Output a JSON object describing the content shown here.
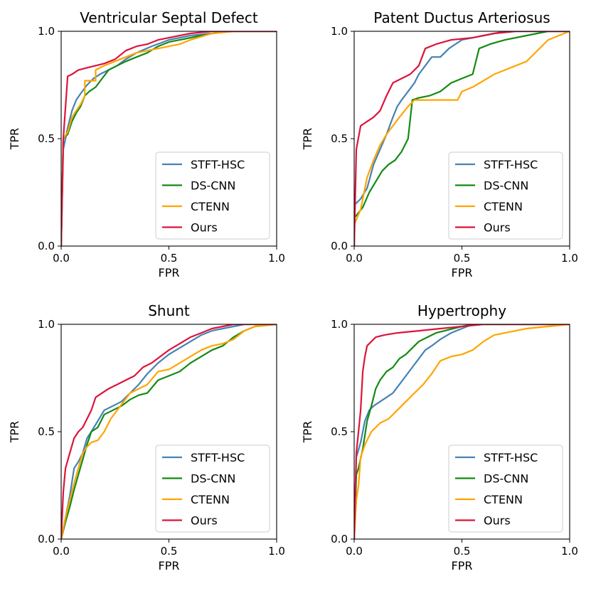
{
  "chart_data": [
    {
      "type": "line",
      "title": "Ventricular Septal Defect",
      "xlabel": "FPR",
      "ylabel": "TPR",
      "xlim": [
        0,
        1
      ],
      "ylim": [
        0,
        1
      ],
      "xticks": [
        "0.0",
        "0.5",
        "1.0"
      ],
      "yticks": [
        "0.0",
        "0.5",
        "1.0"
      ],
      "legend_position": "lower-right",
      "series": [
        {
          "name": "STFT-HSC",
          "color": "#4682b4",
          "x": [
            0,
            0.01,
            0.03,
            0.05,
            0.07,
            0.09,
            0.12,
            0.15,
            0.18,
            0.22,
            0.26,
            0.3,
            0.35,
            0.42,
            0.5,
            0.6,
            0.7,
            0.8,
            1.0
          ],
          "y": [
            0,
            0.45,
            0.55,
            0.63,
            0.68,
            0.71,
            0.75,
            0.78,
            0.8,
            0.82,
            0.84,
            0.87,
            0.9,
            0.93,
            0.96,
            0.98,
            0.99,
            1.0,
            1.0
          ]
        },
        {
          "name": "DS-CNN",
          "color": "#138a13",
          "x": [
            0,
            0.01,
            0.03,
            0.05,
            0.07,
            0.09,
            0.11,
            0.13,
            0.16,
            0.19,
            0.22,
            0.26,
            0.3,
            0.35,
            0.4,
            0.45,
            0.5,
            0.55,
            0.65,
            0.75,
            1.0
          ],
          "y": [
            0,
            0.5,
            0.52,
            0.58,
            0.62,
            0.65,
            0.7,
            0.72,
            0.74,
            0.78,
            0.82,
            0.84,
            0.86,
            0.88,
            0.9,
            0.93,
            0.95,
            0.96,
            0.98,
            1.0,
            1.0
          ]
        },
        {
          "name": "CTENN",
          "color": "#ffa500",
          "x": [
            0,
            0.01,
            0.03,
            0.05,
            0.07,
            0.09,
            0.11,
            0.11,
            0.16,
            0.16,
            0.2,
            0.25,
            0.3,
            0.35,
            0.4,
            0.45,
            0.5,
            0.55,
            0.6,
            0.7,
            0.8,
            1.0
          ],
          "y": [
            0,
            0.5,
            0.53,
            0.6,
            0.63,
            0.66,
            0.7,
            0.77,
            0.77,
            0.82,
            0.84,
            0.86,
            0.88,
            0.9,
            0.91,
            0.92,
            0.93,
            0.94,
            0.96,
            0.99,
            1.0,
            1.0
          ]
        },
        {
          "name": "Ours",
          "color": "#dc143c",
          "x": [
            0,
            0.01,
            0.03,
            0.05,
            0.08,
            0.12,
            0.16,
            0.2,
            0.25,
            0.3,
            0.35,
            0.4,
            0.45,
            0.5,
            0.55,
            0.6,
            0.7,
            0.8,
            1.0
          ],
          "y": [
            0,
            0.5,
            0.79,
            0.8,
            0.82,
            0.83,
            0.84,
            0.85,
            0.87,
            0.91,
            0.93,
            0.94,
            0.96,
            0.97,
            0.98,
            0.99,
            1.0,
            1.0,
            1.0
          ]
        }
      ]
    },
    {
      "type": "line",
      "title": "Patent Ductus Arteriosus",
      "xlabel": "FPR",
      "ylabel": "TPR",
      "xlim": [
        0,
        1
      ],
      "ylim": [
        0,
        1
      ],
      "xticks": [
        "0.0",
        "0.5",
        "1.0"
      ],
      "yticks": [
        "0.0",
        "0.5",
        "1.0"
      ],
      "legend_position": "lower-right",
      "series": [
        {
          "name": "STFT-HSC",
          "color": "#4682b4",
          "x": [
            0,
            0,
            0.03,
            0.06,
            0.09,
            0.12,
            0.15,
            0.18,
            0.2,
            0.22,
            0.25,
            0.28,
            0.3,
            0.33,
            0.36,
            0.4,
            0.44,
            0.5,
            0.55,
            0.6,
            0.7,
            0.85,
            1.0
          ],
          "y": [
            0,
            0.19,
            0.22,
            0.27,
            0.38,
            0.45,
            0.52,
            0.6,
            0.65,
            0.68,
            0.72,
            0.76,
            0.8,
            0.84,
            0.88,
            0.88,
            0.92,
            0.96,
            0.97,
            0.98,
            1.0,
            1.0,
            1.0
          ]
        },
        {
          "name": "DS-CNN",
          "color": "#138a13",
          "x": [
            0,
            0,
            0.04,
            0.07,
            0.1,
            0.13,
            0.16,
            0.19,
            0.22,
            0.25,
            0.27,
            0.3,
            0.35,
            0.4,
            0.45,
            0.5,
            0.55,
            0.58,
            0.63,
            0.7,
            0.8,
            0.9,
            1.0
          ],
          "y": [
            0,
            0.13,
            0.18,
            0.25,
            0.3,
            0.35,
            0.38,
            0.4,
            0.44,
            0.5,
            0.68,
            0.69,
            0.7,
            0.72,
            0.76,
            0.78,
            0.8,
            0.92,
            0.94,
            0.96,
            0.98,
            1.0,
            1.0
          ]
        },
        {
          "name": "CTENN",
          "color": "#ffa500",
          "x": [
            0,
            0,
            0.03,
            0.06,
            0.09,
            0.12,
            0.15,
            0.18,
            0.21,
            0.25,
            0.28,
            0.35,
            0.4,
            0.48,
            0.5,
            0.55,
            0.6,
            0.65,
            0.7,
            0.8,
            0.9,
            1.0
          ],
          "y": [
            0,
            0.1,
            0.17,
            0.32,
            0.4,
            0.47,
            0.52,
            0.56,
            0.6,
            0.65,
            0.68,
            0.68,
            0.68,
            0.68,
            0.72,
            0.74,
            0.77,
            0.8,
            0.82,
            0.86,
            0.96,
            1.0
          ]
        },
        {
          "name": "Ours",
          "color": "#dc143c",
          "x": [
            0,
            0.01,
            0.03,
            0.06,
            0.09,
            0.12,
            0.15,
            0.18,
            0.22,
            0.26,
            0.3,
            0.33,
            0.38,
            0.45,
            0.55,
            0.65,
            0.75,
            1.0
          ],
          "y": [
            0,
            0.45,
            0.56,
            0.58,
            0.6,
            0.63,
            0.7,
            0.76,
            0.78,
            0.8,
            0.84,
            0.92,
            0.94,
            0.96,
            0.97,
            0.99,
            1.0,
            1.0
          ]
        }
      ]
    },
    {
      "type": "line",
      "title": "Shunt",
      "xlabel": "FPR",
      "ylabel": "TPR",
      "xlim": [
        0,
        1
      ],
      "ylim": [
        0,
        1
      ],
      "xticks": [
        "0.0",
        "0.5",
        "1.0"
      ],
      "yticks": [
        "0.0",
        "0.5",
        "1.0"
      ],
      "legend_position": "lower-right",
      "series": [
        {
          "name": "STFT-HSC",
          "color": "#4682b4",
          "x": [
            0,
            0.02,
            0.04,
            0.06,
            0.08,
            0.1,
            0.12,
            0.14,
            0.17,
            0.2,
            0.24,
            0.28,
            0.32,
            0.36,
            0.4,
            0.45,
            0.5,
            0.55,
            0.6,
            0.65,
            0.7,
            0.75,
            0.8,
            0.85,
            1.0
          ],
          "y": [
            0,
            0.1,
            0.2,
            0.33,
            0.36,
            0.4,
            0.47,
            0.5,
            0.55,
            0.6,
            0.62,
            0.64,
            0.68,
            0.72,
            0.77,
            0.82,
            0.86,
            0.89,
            0.92,
            0.95,
            0.97,
            0.98,
            0.99,
            1.0,
            1.0
          ]
        },
        {
          "name": "DS-CNN",
          "color": "#138a13",
          "x": [
            0,
            0.02,
            0.04,
            0.06,
            0.08,
            0.1,
            0.12,
            0.14,
            0.17,
            0.2,
            0.24,
            0.28,
            0.32,
            0.36,
            0.4,
            0.45,
            0.5,
            0.55,
            0.6,
            0.65,
            0.7,
            0.75,
            0.8,
            0.85,
            0.9,
            1.0
          ],
          "y": [
            0,
            0.08,
            0.15,
            0.23,
            0.3,
            0.37,
            0.44,
            0.5,
            0.52,
            0.58,
            0.6,
            0.62,
            0.65,
            0.67,
            0.68,
            0.74,
            0.76,
            0.78,
            0.82,
            0.85,
            0.88,
            0.9,
            0.94,
            0.97,
            0.99,
            1.0
          ]
        },
        {
          "name": "CTENN",
          "color": "#ffa500",
          "x": [
            0,
            0.02,
            0.04,
            0.06,
            0.08,
            0.1,
            0.12,
            0.14,
            0.17,
            0.2,
            0.23,
            0.26,
            0.29,
            0.32,
            0.36,
            0.4,
            0.45,
            0.5,
            0.55,
            0.6,
            0.65,
            0.7,
            0.75,
            0.8,
            0.85,
            0.9,
            1.0
          ],
          "y": [
            0,
            0.1,
            0.18,
            0.26,
            0.33,
            0.4,
            0.43,
            0.45,
            0.46,
            0.5,
            0.56,
            0.6,
            0.64,
            0.68,
            0.7,
            0.72,
            0.78,
            0.79,
            0.82,
            0.85,
            0.88,
            0.9,
            0.91,
            0.93,
            0.97,
            0.99,
            1.0
          ]
        },
        {
          "name": "Ours",
          "color": "#dc143c",
          "x": [
            0,
            0.01,
            0.02,
            0.04,
            0.06,
            0.08,
            0.1,
            0.12,
            0.14,
            0.16,
            0.19,
            0.22,
            0.26,
            0.3,
            0.34,
            0.38,
            0.42,
            0.46,
            0.5,
            0.55,
            0.6,
            0.65,
            0.7,
            0.75,
            0.8,
            0.85,
            1.0
          ],
          "y": [
            0,
            0.22,
            0.33,
            0.4,
            0.47,
            0.5,
            0.52,
            0.56,
            0.6,
            0.66,
            0.68,
            0.7,
            0.72,
            0.74,
            0.76,
            0.8,
            0.82,
            0.85,
            0.88,
            0.91,
            0.94,
            0.96,
            0.98,
            0.99,
            1.0,
            1.0,
            1.0
          ]
        }
      ]
    },
    {
      "type": "line",
      "title": "Hypertrophy",
      "xlabel": "FPR",
      "ylabel": "TPR",
      "xlim": [
        0,
        1
      ],
      "ylim": [
        0,
        1
      ],
      "xticks": [
        "0.0",
        "0.5",
        "1.0"
      ],
      "yticks": [
        "0.0",
        "0.5",
        "1.0"
      ],
      "legend_position": "lower-right",
      "series": [
        {
          "name": "STFT-HSC",
          "color": "#4682b4",
          "x": [
            0,
            0.01,
            0.03,
            0.05,
            0.07,
            0.09,
            0.12,
            0.15,
            0.18,
            0.21,
            0.24,
            0.27,
            0.3,
            0.33,
            0.36,
            0.4,
            0.45,
            0.5,
            0.55,
            0.65,
            1.0
          ],
          "y": [
            0,
            0.38,
            0.45,
            0.55,
            0.6,
            0.62,
            0.64,
            0.66,
            0.68,
            0.72,
            0.76,
            0.8,
            0.84,
            0.88,
            0.9,
            0.93,
            0.96,
            0.98,
            1.0,
            1.0,
            1.0
          ]
        },
        {
          "name": "DS-CNN",
          "color": "#138a13",
          "x": [
            0,
            0.01,
            0.02,
            0.04,
            0.06,
            0.08,
            0.1,
            0.12,
            0.15,
            0.18,
            0.21,
            0.24,
            0.27,
            0.3,
            0.34,
            0.38,
            0.42,
            0.46,
            0.5,
            0.55,
            0.6,
            1.0
          ],
          "y": [
            0,
            0.3,
            0.33,
            0.42,
            0.55,
            0.62,
            0.7,
            0.74,
            0.78,
            0.8,
            0.84,
            0.86,
            0.89,
            0.92,
            0.94,
            0.96,
            0.97,
            0.98,
            0.99,
            1.0,
            1.0,
            1.0
          ]
        },
        {
          "name": "CTENN",
          "color": "#ffa500",
          "x": [
            0,
            0.01,
            0.02,
            0.03,
            0.05,
            0.08,
            0.12,
            0.16,
            0.2,
            0.24,
            0.28,
            0.32,
            0.36,
            0.4,
            0.45,
            0.5,
            0.55,
            0.6,
            0.65,
            0.7,
            0.75,
            0.8,
            0.9,
            1.0
          ],
          "y": [
            0,
            0.18,
            0.25,
            0.38,
            0.44,
            0.5,
            0.54,
            0.56,
            0.6,
            0.64,
            0.68,
            0.72,
            0.77,
            0.83,
            0.85,
            0.86,
            0.88,
            0.92,
            0.95,
            0.96,
            0.97,
            0.98,
            0.99,
            1.0
          ]
        },
        {
          "name": "Ours",
          "color": "#dc143c",
          "x": [
            0,
            0.01,
            0.02,
            0.03,
            0.04,
            0.05,
            0.06,
            0.08,
            0.1,
            0.14,
            0.2,
            0.3,
            0.4,
            0.5,
            0.6,
            0.7,
            1.0
          ],
          "y": [
            0,
            0.4,
            0.5,
            0.6,
            0.78,
            0.85,
            0.9,
            0.92,
            0.94,
            0.95,
            0.96,
            0.97,
            0.98,
            0.99,
            1.0,
            1.0,
            1.0
          ]
        }
      ]
    }
  ]
}
